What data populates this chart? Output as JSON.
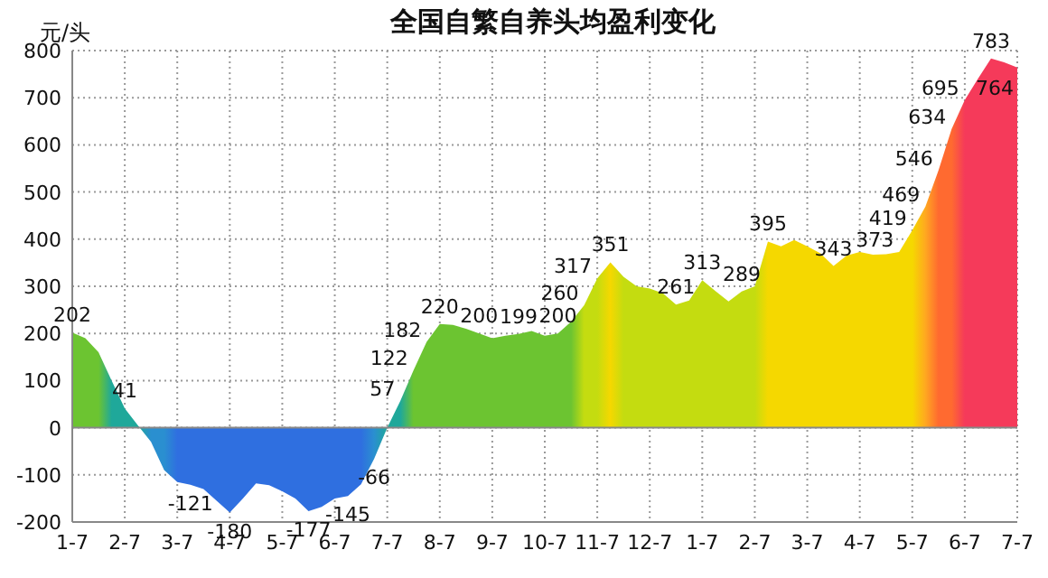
{
  "chart_data": {
    "type": "area",
    "title": "全国自繁自养头均盈利变化",
    "ylabel": "元/头",
    "categories": [
      "1-7",
      null,
      null,
      null,
      "2-7",
      null,
      null,
      null,
      "3-7",
      null,
      null,
      null,
      "4-7",
      null,
      null,
      null,
      "5-7",
      null,
      null,
      null,
      "6-7",
      null,
      null,
      null,
      "7-7",
      null,
      null,
      null,
      "8-7",
      null,
      null,
      null,
      "9-7",
      null,
      null,
      null,
      "10-7",
      null,
      null,
      null,
      "11-7",
      null,
      null,
      null,
      "12-7",
      null,
      null,
      null,
      "1-7",
      null,
      null,
      null,
      "2-7",
      null,
      null,
      null,
      "3-7",
      null,
      null,
      null,
      "4-7",
      null,
      null,
      null,
      "5-7",
      null,
      null,
      null,
      "6-7",
      null,
      null,
      null,
      "7-7"
    ],
    "values": [
      202,
      190,
      160,
      100,
      41,
      5,
      -30,
      -90,
      -115,
      -121,
      -130,
      -155,
      -180,
      -150,
      -118,
      -122,
      -135,
      -150,
      -177,
      -168,
      -150,
      -145,
      -120,
      -66,
      0,
      57,
      122,
      182,
      220,
      218,
      210,
      200,
      190,
      195,
      199,
      205,
      195,
      200,
      225,
      260,
      317,
      351,
      320,
      300,
      295,
      285,
      261,
      270,
      313,
      290,
      268,
      289,
      300,
      395,
      385,
      398,
      385,
      370,
      343,
      365,
      373,
      367,
      368,
      373,
      419,
      469,
      546,
      634,
      695,
      740,
      783,
      775,
      764
    ],
    "value_labels": [
      "202",
      null,
      null,
      null,
      "41",
      null,
      null,
      null,
      null,
      "-121",
      null,
      null,
      "-180",
      null,
      null,
      null,
      null,
      null,
      "-177",
      null,
      null,
      "-145",
      null,
      "-66",
      null,
      "57",
      "122",
      "182",
      "220",
      null,
      null,
      "200",
      null,
      null,
      "199",
      null,
      null,
      "200",
      null,
      "260",
      "317",
      "351",
      null,
      null,
      null,
      null,
      "261",
      null,
      "313",
      null,
      null,
      "289",
      null,
      "395",
      null,
      null,
      null,
      null,
      "343",
      null,
      null,
      null,
      null,
      "373",
      "419",
      "469",
      "546",
      "634",
      "695",
      null,
      "783",
      null,
      "764"
    ],
    "colors": [
      "#6cc431",
      "#6cc431",
      "#6cc431",
      "#1fa89a",
      "#1fa89a",
      "#1fa89a",
      "#2a8fd0",
      "#2a8fd0",
      "#2f6fe0",
      "#2f6fe0",
      "#2f6fe0",
      "#2f6fe0",
      "#2f6fe0",
      "#2f6fe0",
      "#2f6fe0",
      "#2f6fe0",
      "#2f6fe0",
      "#2f6fe0",
      "#2f6fe0",
      "#2f6fe0",
      "#2f6fe0",
      "#2f6fe0",
      "#2f6fe0",
      "#2a8fd0",
      "#1fa89a",
      "#1fa89a",
      "#6cc431",
      "#6cc431",
      "#6cc431",
      "#6cc431",
      "#6cc431",
      "#6cc431",
      "#6cc431",
      "#6cc431",
      "#6cc431",
      "#6cc431",
      "#6cc431",
      "#6cc431",
      "#6cc431",
      "#c4dc10",
      "#c4dc10",
      "#f5d800",
      "#c4dc10",
      "#c4dc10",
      "#c4dc10",
      "#c4dc10",
      "#c4dc10",
      "#c4dc10",
      "#c4dc10",
      "#c4dc10",
      "#c4dc10",
      "#c4dc10",
      "#c4dc10",
      "#f5d800",
      "#f5d800",
      "#f5d800",
      "#f5d800",
      "#f5d800",
      "#f5d800",
      "#f5d800",
      "#f5d800",
      "#f5d800",
      "#f5d800",
      "#f5d800",
      "#f5d800",
      "#ffa820",
      "#ff6a30",
      "#ff6a30",
      "#f53a5a",
      "#f53a5a",
      "#f53a5a",
      "#f53a5a",
      "#f53a5a"
    ],
    "ylim": [
      -200,
      800
    ],
    "yticks": [
      -200,
      -100,
      0,
      100,
      200,
      300,
      400,
      500,
      600,
      700,
      800
    ],
    "grid": true
  }
}
